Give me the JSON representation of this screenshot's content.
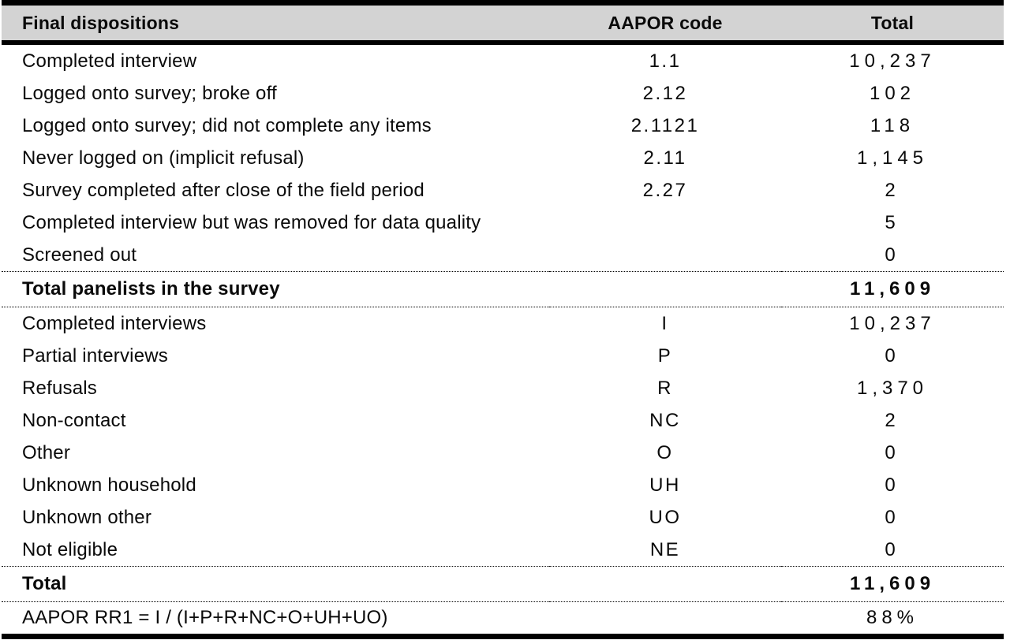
{
  "table": {
    "headers": {
      "label": "Final dispositions",
      "code": "AAPOR code",
      "total": "Total"
    },
    "rows": [
      {
        "type": "data",
        "label": "Completed interview",
        "code": "1.1",
        "total": "10,237"
      },
      {
        "type": "data",
        "label": "Logged onto survey; broke off",
        "code": "2.12",
        "total": "102"
      },
      {
        "type": "data",
        "label": "Logged onto survey; did not complete any items",
        "code": "2.1121",
        "total": "118"
      },
      {
        "type": "data",
        "label": "Never logged on (implicit refusal)",
        "code": "2.11",
        "total": "1,145"
      },
      {
        "type": "data",
        "label": "Survey completed after close of the field period",
        "code": "2.27",
        "total": "2"
      },
      {
        "type": "data",
        "label": "Completed interview but was removed for data quality",
        "code": "",
        "total": "5"
      },
      {
        "type": "data",
        "label": "Screened out",
        "code": "",
        "total": "0"
      },
      {
        "type": "total",
        "label": "Total panelists in the survey",
        "code": "",
        "total": "11,609"
      },
      {
        "type": "data",
        "label": "Completed interviews",
        "code": "I",
        "total": "10,237"
      },
      {
        "type": "data",
        "label": "Partial interviews",
        "code": "P",
        "total": "0"
      },
      {
        "type": "data",
        "label": "Refusals",
        "code": "R",
        "total": "1,370"
      },
      {
        "type": "data",
        "label": "Non-contact",
        "code": "NC",
        "total": "2"
      },
      {
        "type": "data",
        "label": "Other",
        "code": "O",
        "total": "0"
      },
      {
        "type": "data",
        "label": "Unknown household",
        "code": "UH",
        "total": "0"
      },
      {
        "type": "data",
        "label": "Unknown other",
        "code": "UO",
        "total": "0"
      },
      {
        "type": "data",
        "label": "Not eligible",
        "code": "NE",
        "total": "0"
      },
      {
        "type": "total",
        "label": "Total",
        "code": "",
        "total": "11,609"
      },
      {
        "type": "formula",
        "label": "AAPOR RR1 = I / (I+P+R+NC+O+UH+UO)",
        "code": "",
        "total": "88%"
      }
    ]
  },
  "colors": {
    "header_background": "#d3d3d3",
    "rule": "#000000",
    "text": "#0a0a0a"
  }
}
